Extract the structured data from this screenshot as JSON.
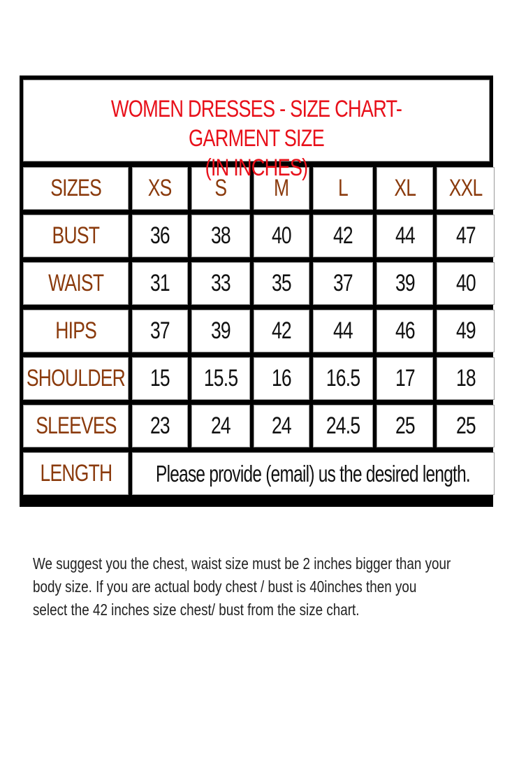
{
  "title": {
    "line1": "WOMEN DRESSES - SIZE CHART- GARMENT SIZE",
    "line2": "(IN INCHES)"
  },
  "colors": {
    "title": "#e8101a",
    "label": "#8a3a0c",
    "border": "#000000"
  },
  "header": [
    "SIZES",
    "XS",
    "S",
    "M",
    "L",
    "XL",
    "XXL"
  ],
  "rows": [
    {
      "label": "BUST",
      "values": [
        "36",
        "38",
        "40",
        "42",
        "44",
        "47"
      ]
    },
    {
      "label": "WAIST",
      "values": [
        "31",
        "33",
        "35",
        "37",
        "39",
        "40"
      ]
    },
    {
      "label": "HIPS",
      "values": [
        "37",
        "39",
        "42",
        "44",
        "46",
        "49"
      ]
    },
    {
      "label": "SHOULDER",
      "values": [
        "15",
        "15.5",
        "16",
        "16.5",
        "17",
        "18"
      ]
    },
    {
      "label": "SLEEVES",
      "values": [
        "23",
        "24",
        "24",
        "24.5",
        "25",
        "25"
      ]
    }
  ],
  "length": {
    "label": "LENGTH",
    "text": "Please provide (email) us the desired length."
  },
  "note": [
    "We suggest you the chest, waist size must be 2 inches bigger than your",
    "body size. If you are actual body chest / bust is 40inches then you",
    "select the 42 inches size chest/ bust from the size chart."
  ]
}
